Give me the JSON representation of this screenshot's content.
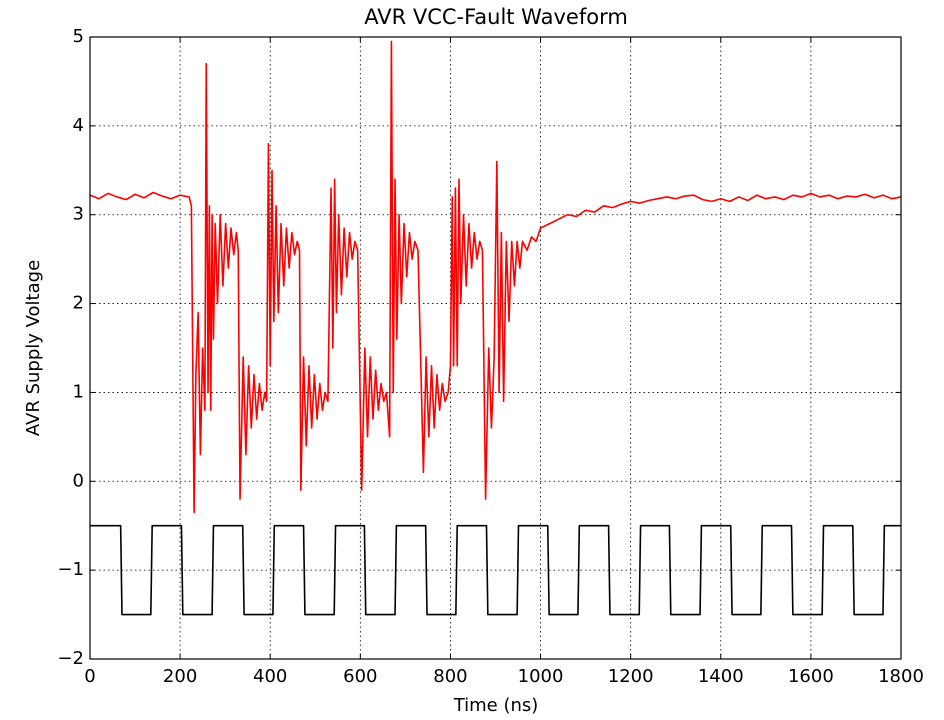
{
  "chart_data": {
    "type": "line",
    "title": "AVR VCC-Fault Waveform",
    "x_label": "Time (ns)",
    "y_label": "AVR Supply Voltage",
    "xlim": [
      0,
      1800
    ],
    "xticks": [
      0,
      200,
      400,
      600,
      800,
      1000,
      1200,
      1400,
      1600,
      1800
    ],
    "ylim": [
      -2,
      5
    ],
    "yticks": [
      {
        "value": -2,
        "label": "−2"
      },
      {
        "value": -1,
        "label": "−1"
      },
      0,
      1,
      2,
      3,
      4,
      5
    ],
    "grid": true,
    "series": [
      {
        "color": "#ff0000",
        "x": [
          0,
          20,
          40,
          60,
          80,
          100,
          120,
          140,
          160,
          180,
          200,
          220,
          225,
          231,
          235,
          240,
          245,
          250,
          255,
          258,
          262,
          265,
          268,
          271,
          274,
          278,
          283,
          289,
          295,
          301,
          307,
          313,
          319,
          325,
          329,
          333,
          340,
          346,
          352,
          358,
          364,
          370,
          376,
          382,
          388,
          392,
          396,
          400,
          404,
          408,
          413,
          418,
          424,
          430,
          436,
          442,
          448,
          454,
          460,
          465,
          468,
          474,
          480,
          486,
          492,
          498,
          504,
          510,
          516,
          522,
          528,
          535,
          539,
          543,
          547,
          552,
          558,
          564,
          570,
          576,
          582,
          588,
          594,
          603,
          610,
          616,
          622,
          628,
          634,
          640,
          646,
          652,
          658,
          665,
          669,
          673,
          677,
          681,
          686,
          691,
          697,
          703,
          709,
          715,
          721,
          728,
          740,
          746,
          752,
          758,
          764,
          770,
          776,
          782,
          788,
          795,
          800,
          804,
          807,
          811,
          815,
          819,
          823,
          829,
          835,
          841,
          847,
          853,
          859,
          865,
          871,
          878,
          885,
          891,
          897,
          903,
          908,
          913,
          918,
          924,
          930,
          936,
          942,
          948,
          954,
          960,
          970,
          980,
          990,
          1000,
          1020,
          1040,
          1060,
          1080,
          1100,
          1120,
          1140,
          1160,
          1180,
          1200,
          1220,
          1240,
          1260,
          1280,
          1300,
          1320,
          1340,
          1360,
          1380,
          1400,
          1420,
          1440,
          1460,
          1480,
          1500,
          1520,
          1540,
          1560,
          1580,
          1600,
          1620,
          1640,
          1660,
          1680,
          1700,
          1720,
          1740,
          1760,
          1780,
          1800
        ],
        "values": [
          3.22,
          3.18,
          3.24,
          3.2,
          3.17,
          3.23,
          3.19,
          3.25,
          3.21,
          3.18,
          3.22,
          3.2,
          3.1,
          -0.35,
          1.2,
          1.9,
          0.3,
          1.5,
          0.8,
          4.7,
          1.0,
          3.1,
          0.8,
          3.0,
          1.6,
          2.9,
          2.0,
          3.0,
          2.2,
          2.9,
          2.4,
          2.85,
          2.55,
          2.8,
          2.6,
          -0.2,
          1.4,
          0.3,
          1.3,
          0.6,
          1.2,
          0.7,
          1.1,
          0.8,
          1.0,
          0.9,
          3.8,
          1.3,
          3.5,
          1.8,
          3.1,
          1.9,
          2.9,
          2.2,
          2.85,
          2.4,
          2.8,
          2.55,
          2.7,
          2.6,
          -0.1,
          1.4,
          0.4,
          1.3,
          0.6,
          1.2,
          0.7,
          1.1,
          0.8,
          1.0,
          0.9,
          3.3,
          1.5,
          3.4,
          1.9,
          3.0,
          2.1,
          2.85,
          2.3,
          2.8,
          2.5,
          2.7,
          2.6,
          -0.1,
          1.5,
          0.5,
          1.4,
          0.7,
          1.25,
          0.8,
          1.1,
          0.9,
          1.0,
          0.5,
          4.95,
          1.0,
          3.4,
          1.6,
          3.0,
          2.0,
          2.9,
          2.3,
          2.8,
          2.5,
          2.7,
          2.6,
          0.1,
          1.4,
          0.5,
          1.3,
          0.6,
          1.2,
          0.8,
          1.1,
          0.9,
          1.0,
          1.3,
          3.2,
          1.3,
          3.3,
          1.3,
          3.4,
          2.0,
          3.0,
          2.2,
          2.9,
          2.4,
          2.8,
          2.5,
          2.7,
          2.6,
          -0.2,
          1.5,
          0.6,
          1.4,
          3.6,
          1.0,
          2.8,
          0.9,
          2.7,
          1.8,
          2.7,
          2.2,
          2.7,
          2.4,
          2.7,
          2.6,
          2.75,
          2.7,
          2.85,
          2.9,
          2.95,
          3.0,
          2.98,
          3.05,
          3.03,
          3.1,
          3.08,
          3.12,
          3.15,
          3.13,
          3.16,
          3.18,
          3.2,
          3.18,
          3.21,
          3.22,
          3.17,
          3.15,
          3.18,
          3.15,
          3.2,
          3.16,
          3.22,
          3.18,
          3.2,
          3.17,
          3.22,
          3.2,
          3.24,
          3.2,
          3.22,
          3.18,
          3.21,
          3.2,
          3.23,
          3.19,
          3.22,
          3.18,
          3.2
        ]
      },
      {
        "color": "#000000",
        "x": [
          0,
          68,
          71,
          135,
          138,
          203,
          206,
          271,
          274,
          339,
          342,
          406,
          409,
          474,
          477,
          542,
          545,
          609,
          612,
          677,
          680,
          745,
          748,
          812,
          815,
          880,
          883,
          948,
          951,
          1016,
          1019,
          1083,
          1086,
          1151,
          1154,
          1219,
          1222,
          1286,
          1289,
          1354,
          1357,
          1422,
          1425,
          1489,
          1492,
          1557,
          1560,
          1625,
          1628,
          1693,
          1696,
          1760,
          1763,
          1800
        ],
        "values": [
          -0.5,
          -0.5,
          -1.5,
          -1.5,
          -0.5,
          -0.5,
          -1.5,
          -1.5,
          -0.5,
          -0.5,
          -1.5,
          -1.5,
          -0.5,
          -0.5,
          -1.5,
          -1.5,
          -0.5,
          -0.5,
          -1.5,
          -1.5,
          -0.5,
          -0.5,
          -1.5,
          -1.5,
          -0.5,
          -0.5,
          -1.5,
          -1.5,
          -0.5,
          -0.5,
          -1.5,
          -1.5,
          -0.5,
          -0.5,
          -1.5,
          -1.5,
          -0.5,
          -0.5,
          -1.5,
          -1.5,
          -0.5,
          -0.5,
          -1.5,
          -1.5,
          -0.5,
          -0.5,
          -1.5,
          -1.5,
          -0.5,
          -0.5,
          -1.5,
          -1.5,
          -0.5,
          -0.5
        ]
      }
    ]
  }
}
